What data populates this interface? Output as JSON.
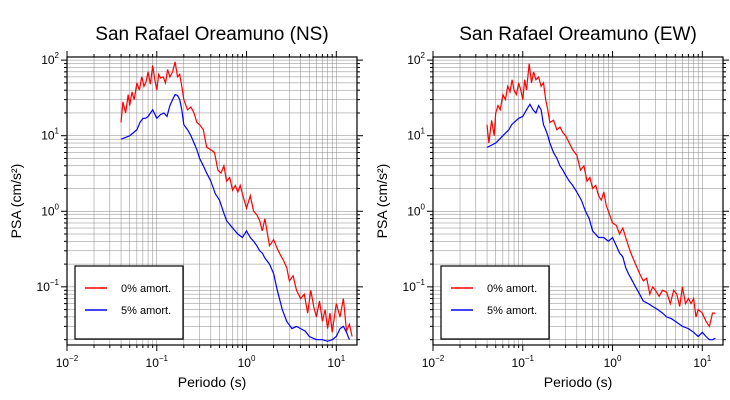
{
  "chart_data": [
    {
      "type": "line",
      "title": "San Rafael Oreamuno (NS)",
      "xlabel": "Periodo (s)",
      "ylabel": "PSA (cm/s²)",
      "xscale": "log",
      "yscale": "log",
      "xlim": [
        0.01,
        17
      ],
      "ylim": [
        0.017,
        110
      ],
      "grid": true,
      "legend_position": "bottom-left",
      "x_ticks": [
        {
          "base": "10",
          "exp": "−2",
          "value": 0.01
        },
        {
          "base": "10",
          "exp": "−1",
          "value": 0.1
        },
        {
          "base": "10",
          "exp": "0",
          "value": 1
        },
        {
          "base": "10",
          "exp": "1",
          "value": 10
        }
      ],
      "y_ticks": [
        {
          "base": "10",
          "exp": "−1",
          "value": 0.1
        },
        {
          "base": "10",
          "exp": "0",
          "value": 1
        },
        {
          "base": "10",
          "exp": "1",
          "value": 10
        },
        {
          "base": "10",
          "exp": "2",
          "value": 100
        }
      ],
      "series": [
        {
          "name": "0% amort.",
          "color": "#ff0000",
          "x": [
            0.04,
            0.042,
            0.045,
            0.048,
            0.05,
            0.053,
            0.056,
            0.06,
            0.064,
            0.068,
            0.072,
            0.076,
            0.08,
            0.085,
            0.09,
            0.095,
            0.1,
            0.105,
            0.11,
            0.118,
            0.125,
            0.132,
            0.14,
            0.15,
            0.16,
            0.17,
            0.18,
            0.19,
            0.2,
            0.22,
            0.24,
            0.26,
            0.28,
            0.3,
            0.33,
            0.36,
            0.4,
            0.44,
            0.48,
            0.52,
            0.56,
            0.6,
            0.65,
            0.7,
            0.75,
            0.8,
            0.85,
            0.9,
            1.0,
            1.1,
            1.2,
            1.3,
            1.4,
            1.5,
            1.6,
            1.8,
            2.0,
            2.2,
            2.4,
            2.6,
            2.8,
            3.0,
            3.3,
            3.6,
            4.0,
            4.4,
            4.8,
            5.2,
            5.6,
            6.0,
            6.5,
            7.0,
            7.5,
            8.0,
            8.5,
            9.0,
            10.0,
            11.0,
            12.0,
            13.0,
            14.0,
            15.0
          ],
          "y": [
            15,
            28,
            20,
            35,
            25,
            38,
            30,
            50,
            40,
            60,
            45,
            52,
            70,
            48,
            85,
            55,
            40,
            65,
            58,
            60,
            50,
            75,
            60,
            70,
            95,
            60,
            65,
            45,
            30,
            22,
            24,
            20,
            15,
            14,
            12,
            7,
            6.5,
            6.0,
            3.5,
            3.2,
            4.0,
            2.5,
            2.8,
            1.9,
            2.2,
            1.8,
            2.2,
            1.7,
            1.1,
            1.6,
            1.0,
            0.9,
            0.75,
            0.55,
            0.8,
            0.35,
            0.42,
            0.32,
            0.26,
            0.22,
            0.18,
            0.12,
            0.14,
            0.09,
            0.07,
            0.08,
            0.045,
            0.09,
            0.055,
            0.04,
            0.065,
            0.035,
            0.05,
            0.028,
            0.045,
            0.025,
            0.06,
            0.04,
            0.07,
            0.026,
            0.032,
            0.022
          ]
        },
        {
          "name": "5% amort.",
          "color": "#0000ff",
          "x": [
            0.04,
            0.045,
            0.05,
            0.055,
            0.06,
            0.065,
            0.07,
            0.075,
            0.08,
            0.09,
            0.1,
            0.11,
            0.12,
            0.13,
            0.14,
            0.15,
            0.16,
            0.17,
            0.18,
            0.19,
            0.2,
            0.22,
            0.24,
            0.26,
            0.28,
            0.3,
            0.33,
            0.36,
            0.4,
            0.45,
            0.5,
            0.55,
            0.6,
            0.7,
            0.8,
            0.9,
            1.0,
            1.1,
            1.2,
            1.3,
            1.4,
            1.5,
            1.6,
            1.8,
            2.0,
            2.2,
            2.5,
            2.8,
            3.2,
            3.6,
            4.0,
            4.5,
            5.0,
            6.0,
            7.0,
            8.0,
            9.0,
            10.0,
            11.0,
            12.0,
            13.0,
            14.0
          ],
          "y": [
            9,
            9.5,
            10,
            11,
            12,
            15,
            17,
            17,
            18,
            22,
            17,
            19,
            20,
            18,
            25,
            30,
            35,
            34,
            30,
            22,
            14,
            12,
            10,
            8,
            6.5,
            5.0,
            4.0,
            3.2,
            2.5,
            1.7,
            1.4,
            1.0,
            0.75,
            0.6,
            0.5,
            0.45,
            0.55,
            0.45,
            0.4,
            0.35,
            0.3,
            0.28,
            0.24,
            0.2,
            0.15,
            0.09,
            0.05,
            0.035,
            0.028,
            0.03,
            0.028,
            0.026,
            0.022,
            0.02,
            0.02,
            0.019,
            0.02,
            0.022,
            0.028,
            0.03,
            0.025,
            0.02
          ]
        }
      ]
    },
    {
      "type": "line",
      "title": "San Rafael Oreamuno (EW)",
      "xlabel": "Periodo (s)",
      "ylabel": "PSA (cm/s²)",
      "xscale": "log",
      "yscale": "log",
      "xlim": [
        0.01,
        17
      ],
      "ylim": [
        0.017,
        110
      ],
      "grid": true,
      "legend_position": "bottom-left",
      "x_ticks": [
        {
          "base": "10",
          "exp": "−2",
          "value": 0.01
        },
        {
          "base": "10",
          "exp": "−1",
          "value": 0.1
        },
        {
          "base": "10",
          "exp": "0",
          "value": 1
        },
        {
          "base": "10",
          "exp": "1",
          "value": 10
        }
      ],
      "y_ticks": [
        {
          "base": "10",
          "exp": "−1",
          "value": 0.1
        },
        {
          "base": "10",
          "exp": "0",
          "value": 1
        },
        {
          "base": "10",
          "exp": "1",
          "value": 10
        },
        {
          "base": "10",
          "exp": "2",
          "value": 100
        }
      ],
      "series": [
        {
          "name": "0% amort.",
          "color": "#ff0000",
          "x": [
            0.04,
            0.042,
            0.045,
            0.048,
            0.05,
            0.053,
            0.056,
            0.06,
            0.064,
            0.068,
            0.072,
            0.076,
            0.08,
            0.085,
            0.09,
            0.095,
            0.1,
            0.105,
            0.11,
            0.118,
            0.125,
            0.132,
            0.14,
            0.15,
            0.16,
            0.17,
            0.18,
            0.19,
            0.2,
            0.22,
            0.24,
            0.26,
            0.28,
            0.3,
            0.33,
            0.36,
            0.4,
            0.44,
            0.48,
            0.52,
            0.56,
            0.6,
            0.65,
            0.7,
            0.75,
            0.8,
            0.85,
            0.9,
            1.0,
            1.1,
            1.2,
            1.3,
            1.4,
            1.5,
            1.6,
            1.8,
            2.0,
            2.2,
            2.4,
            2.6,
            2.8,
            3.0,
            3.3,
            3.6,
            4.0,
            4.4,
            4.8,
            5.2,
            5.6,
            6.0,
            6.5,
            7.0,
            7.5,
            8.0,
            8.5,
            9.0,
            10.0,
            11.0,
            12.0,
            13.0,
            14.0
          ],
          "y": [
            14,
            8,
            16,
            10,
            20,
            25,
            22,
            35,
            30,
            45,
            38,
            55,
            40,
            35,
            50,
            40,
            30,
            55,
            40,
            90,
            50,
            70,
            55,
            60,
            45,
            50,
            30,
            22,
            15,
            16,
            12,
            13,
            11,
            10,
            8,
            6.5,
            5.5,
            3.5,
            4.0,
            2.5,
            2.8,
            2.0,
            2.2,
            1.6,
            1.4,
            1.8,
            1.2,
            1.0,
            0.7,
            0.65,
            0.5,
            0.6,
            0.45,
            0.35,
            0.28,
            0.2,
            0.15,
            0.12,
            0.13,
            0.08,
            0.1,
            0.09,
            0.075,
            0.09,
            0.085,
            0.06,
            0.09,
            0.08,
            0.055,
            0.1,
            0.06,
            0.07,
            0.06,
            0.07,
            0.04,
            0.05,
            0.045,
            0.035,
            0.03,
            0.045,
            0.045
          ]
        },
        {
          "name": "5% amort.",
          "color": "#0000ff",
          "x": [
            0.04,
            0.045,
            0.05,
            0.055,
            0.06,
            0.065,
            0.07,
            0.075,
            0.08,
            0.09,
            0.1,
            0.11,
            0.12,
            0.13,
            0.14,
            0.15,
            0.16,
            0.17,
            0.18,
            0.19,
            0.2,
            0.22,
            0.24,
            0.26,
            0.28,
            0.3,
            0.33,
            0.36,
            0.4,
            0.45,
            0.5,
            0.55,
            0.6,
            0.7,
            0.8,
            0.9,
            1.0,
            1.1,
            1.2,
            1.3,
            1.4,
            1.5,
            1.6,
            1.8,
            2.0,
            2.2,
            2.5,
            2.8,
            3.2,
            3.6,
            4.0,
            4.5,
            5.0,
            6.0,
            7.0,
            8.0,
            9.0,
            10.0,
            11.0,
            12.0,
            13.0,
            14.0
          ],
          "y": [
            7,
            7.5,
            8,
            9,
            10,
            11,
            12,
            14,
            15,
            17,
            18,
            22,
            26,
            22,
            20,
            25,
            22,
            14,
            12,
            10,
            8,
            6,
            5,
            4.0,
            3.5,
            3.0,
            2.5,
            2.2,
            1.8,
            1.4,
            1.0,
            0.8,
            0.55,
            0.45,
            0.45,
            0.4,
            0.45,
            0.35,
            0.28,
            0.25,
            0.18,
            0.15,
            0.13,
            0.1,
            0.08,
            0.065,
            0.06,
            0.055,
            0.05,
            0.045,
            0.04,
            0.038,
            0.035,
            0.03,
            0.028,
            0.025,
            0.022,
            0.025,
            0.022,
            0.02,
            0.02,
            0.021
          ]
        }
      ]
    }
  ]
}
